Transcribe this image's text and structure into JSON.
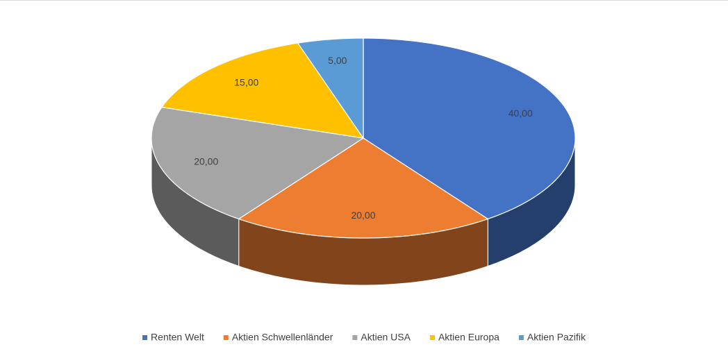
{
  "chart_data": {
    "type": "pie3d",
    "categories": [
      "Renten Welt",
      "Aktien Schwellenländer",
      "Aktien USA",
      "Aktien Europa",
      "Aktien Pazifik"
    ],
    "values": [
      40,
      20,
      20,
      15,
      5
    ],
    "value_labels": [
      "40,00",
      "20,00",
      "20,00",
      "15,00",
      "5,00"
    ],
    "colors": [
      "#4472c4",
      "#ed7d31",
      "#a5a5a5",
      "#ffc000",
      "#5b9bd5"
    ],
    "legend": "bottom"
  }
}
